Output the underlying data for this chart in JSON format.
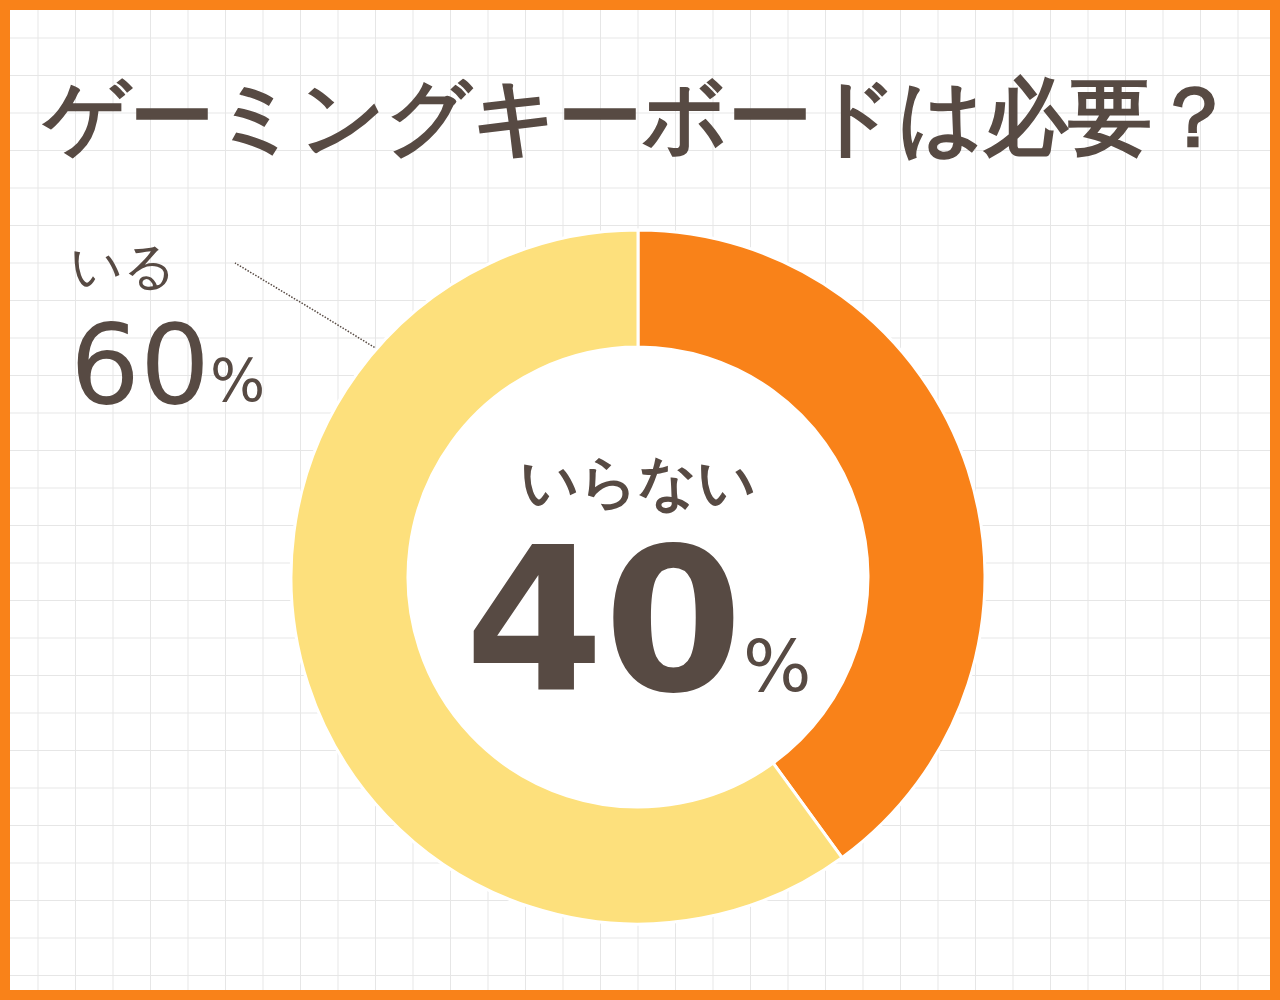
{
  "chart_data": {
    "type": "donut",
    "title": "ゲーミングキーボードは必要？",
    "categories": [
      "いらない",
      "いる"
    ],
    "values": [
      40,
      60
    ],
    "colors": [
      "#f98219",
      "#fde07c"
    ],
    "value_labels": [
      "40%",
      "60%"
    ]
  }
}
